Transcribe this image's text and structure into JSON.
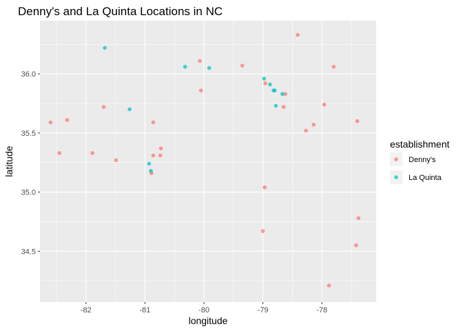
{
  "chart_data": {
    "type": "scatter",
    "title": "Denny's and La Quinta Locations in NC",
    "xlabel": "longitude",
    "ylabel": "latitude",
    "xlim": [
      -82.78,
      -77.08
    ],
    "ylim": [
      34.07,
      36.45
    ],
    "x_ticks": [
      -82,
      -81,
      -80,
      -79,
      -78
    ],
    "x_tick_labels": [
      "-82",
      "-81",
      "-80",
      "-79",
      "-78"
    ],
    "y_ticks": [
      34.5,
      35.0,
      35.5,
      36.0
    ],
    "y_tick_labels": [
      "34.5",
      "35.0",
      "35.5",
      "36.0"
    ],
    "grid": true,
    "legend": {
      "title": "establishment",
      "position": "right"
    },
    "series": [
      {
        "name": "Denny's",
        "color": "#F8766D",
        "points": [
          {
            "x": -82.6,
            "y": 35.59
          },
          {
            "x": -82.32,
            "y": 35.61
          },
          {
            "x": -82.45,
            "y": 35.33
          },
          {
            "x": -81.89,
            "y": 35.33
          },
          {
            "x": -81.7,
            "y": 35.72
          },
          {
            "x": -81.49,
            "y": 35.27
          },
          {
            "x": -80.86,
            "y": 35.59
          },
          {
            "x": -80.73,
            "y": 35.37
          },
          {
            "x": -80.74,
            "y": 35.31
          },
          {
            "x": -80.86,
            "y": 35.31
          },
          {
            "x": -80.89,
            "y": 35.16
          },
          {
            "x": -80.07,
            "y": 36.11
          },
          {
            "x": -80.05,
            "y": 35.86
          },
          {
            "x": -79.35,
            "y": 36.07
          },
          {
            "x": -78.96,
            "y": 35.92
          },
          {
            "x": -78.62,
            "y": 35.83
          },
          {
            "x": -78.65,
            "y": 35.72
          },
          {
            "x": -78.41,
            "y": 36.33
          },
          {
            "x": -77.96,
            "y": 35.74
          },
          {
            "x": -78.27,
            "y": 35.52
          },
          {
            "x": -78.14,
            "y": 35.57
          },
          {
            "x": -77.8,
            "y": 36.06
          },
          {
            "x": -77.4,
            "y": 35.6
          },
          {
            "x": -78.97,
            "y": 35.04
          },
          {
            "x": -79.0,
            "y": 34.67
          },
          {
            "x": -77.38,
            "y": 34.78
          },
          {
            "x": -77.42,
            "y": 34.55
          },
          {
            "x": -77.88,
            "y": 34.21
          }
        ]
      },
      {
        "name": "La Quinta",
        "color": "#00BFC4",
        "points": [
          {
            "x": -81.68,
            "y": 36.22
          },
          {
            "x": -81.26,
            "y": 35.7
          },
          {
            "x": -80.93,
            "y": 35.24
          },
          {
            "x": -80.9,
            "y": 35.18
          },
          {
            "x": -80.32,
            "y": 36.06
          },
          {
            "x": -79.91,
            "y": 36.05
          },
          {
            "x": -78.98,
            "y": 35.96
          },
          {
            "x": -78.88,
            "y": 35.91
          },
          {
            "x": -78.82,
            "y": 35.86
          },
          {
            "x": -78.8,
            "y": 35.86
          },
          {
            "x": -78.67,
            "y": 35.83
          },
          {
            "x": -78.78,
            "y": 35.73
          }
        ]
      }
    ]
  }
}
